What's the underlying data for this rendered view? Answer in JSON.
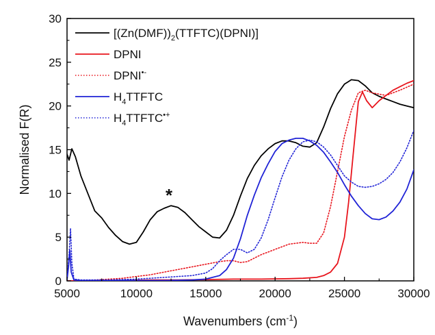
{
  "chart_data": {
    "type": "line",
    "xlabel": "Wavenumbers (cm",
    "xlabel_sup": "-1",
    "xlabel_end": ")",
    "ylabel": "Normalised F(R)",
    "xlim": [
      5000,
      30000
    ],
    "ylim": [
      0,
      30
    ],
    "xticks": [
      5000,
      10000,
      15000,
      20000,
      25000,
      30000
    ],
    "yticks": [
      0,
      5,
      10,
      15,
      20,
      25,
      30
    ],
    "grid": false,
    "legend_position": "top-left",
    "annotations": [
      {
        "text": "*",
        "x": 12350,
        "y": 9.8
      }
    ],
    "series": [
      {
        "name": "[(Zn(DMF))2(TTFTC)(DPNI)]",
        "legend_parts": [
          {
            "t": "[(Zn(DMF))",
            "s": "normal"
          },
          {
            "t": "2",
            "s": "sub"
          },
          {
            "t": "(TTFTC)(DPNI)]",
            "s": "normal"
          }
        ],
        "color": "#000000",
        "dash": "solid",
        "x": [
          5000,
          5150,
          5350,
          5600,
          6000,
          6500,
          7000,
          7500,
          8000,
          8500,
          9000,
          9500,
          10000,
          10500,
          11000,
          11500,
          12000,
          12500,
          13000,
          13500,
          14000,
          14500,
          15000,
          15500,
          16000,
          16500,
          17000,
          17500,
          18000,
          18500,
          19000,
          19500,
          20000,
          20500,
          21000,
          21500,
          22000,
          22500,
          23000,
          23500,
          24000,
          24500,
          25000,
          25500,
          26000,
          26500,
          27000,
          27500,
          28000,
          28500,
          29000,
          29500,
          30000
        ],
        "y": [
          14.5,
          13.8,
          15.1,
          14.2,
          12.0,
          10.0,
          8.0,
          7.2,
          6.1,
          5.2,
          4.5,
          4.2,
          4.4,
          5.6,
          7.0,
          7.9,
          8.3,
          8.6,
          8.4,
          7.8,
          7.0,
          6.2,
          5.6,
          5.0,
          4.9,
          5.8,
          7.5,
          9.7,
          11.7,
          13.2,
          14.3,
          15.1,
          15.7,
          16.0,
          16.0,
          15.8,
          15.4,
          15.3,
          15.8,
          17.6,
          19.7,
          21.4,
          22.5,
          23.0,
          22.9,
          22.3,
          21.5,
          21.1,
          20.8,
          20.5,
          20.2,
          20.0,
          19.8
        ]
      },
      {
        "name": "DPNI",
        "legend_parts": [
          {
            "t": "DPNI",
            "s": "normal"
          }
        ],
        "color": "#e8141c",
        "dash": "solid",
        "x": [
          5000,
          7000,
          9000,
          11000,
          13000,
          15000,
          17000,
          19000,
          21000,
          22000,
          23000,
          23500,
          24000,
          24500,
          25000,
          25300,
          25600,
          26000,
          26300,
          26600,
          27000,
          27500,
          28000,
          28500,
          29000,
          29500,
          30000
        ],
        "y": [
          0.0,
          0.05,
          0.05,
          0.1,
          0.1,
          0.15,
          0.2,
          0.2,
          0.25,
          0.3,
          0.4,
          0.6,
          1.0,
          2.0,
          5.0,
          9.0,
          14.0,
          20.5,
          21.6,
          20.6,
          19.8,
          20.6,
          21.2,
          21.8,
          22.2,
          22.6,
          22.9
        ]
      },
      {
        "name": "DPNI•-",
        "legend_parts": [
          {
            "t": "DPNI",
            "s": "normal"
          },
          {
            "t": "•-",
            "s": "sup"
          }
        ],
        "color": "#e8141c",
        "dash": "dotted",
        "x": [
          5000,
          7000,
          9000,
          10000,
          11000,
          12000,
          13000,
          14000,
          15000,
          16000,
          16500,
          17000,
          17500,
          18000,
          18500,
          19000,
          19500,
          20000,
          21000,
          22000,
          22500,
          23000,
          23500,
          24000,
          24500,
          25000,
          25500,
          26000,
          26500,
          27000,
          28000,
          29000,
          30000
        ],
        "y": [
          0.0,
          0.1,
          0.3,
          0.5,
          0.7,
          1.0,
          1.3,
          1.6,
          1.9,
          2.2,
          2.3,
          2.3,
          2.1,
          2.2,
          2.6,
          3.0,
          3.3,
          3.6,
          4.2,
          4.4,
          4.3,
          4.3,
          5.5,
          8.5,
          12.5,
          16.5,
          19.5,
          21.5,
          21.8,
          21.5,
          21.2,
          21.8,
          22.5
        ]
      },
      {
        "name": "H4TTFTC",
        "legend_parts": [
          {
            "t": "H",
            "s": "normal"
          },
          {
            "t": "4",
            "s": "sub"
          },
          {
            "t": "TTFTC",
            "s": "normal"
          }
        ],
        "color": "#1f22d6",
        "dash": "solid",
        "x": [
          5000,
          5100,
          5200,
          5300,
          5500,
          6000,
          8000,
          10000,
          12000,
          14000,
          15000,
          16000,
          16500,
          17000,
          17500,
          18000,
          18500,
          19000,
          19500,
          20000,
          20500,
          21000,
          21500,
          22000,
          22500,
          23000,
          23500,
          24000,
          24500,
          25000,
          25500,
          26000,
          26500,
          27000,
          27500,
          28000,
          28500,
          29000,
          29500,
          30000
        ],
        "y": [
          0.1,
          1.5,
          3.5,
          1.0,
          0.1,
          0.05,
          0.05,
          0.05,
          0.05,
          0.1,
          0.2,
          0.6,
          1.3,
          2.6,
          4.8,
          7.5,
          9.8,
          11.8,
          13.4,
          14.8,
          15.7,
          16.1,
          16.3,
          16.3,
          16.0,
          15.5,
          14.7,
          13.6,
          12.4,
          11.0,
          9.7,
          8.6,
          7.7,
          7.1,
          7.0,
          7.3,
          8.0,
          9.0,
          10.5,
          12.7
        ]
      },
      {
        "name": "H4TTFTC•+",
        "legend_parts": [
          {
            "t": "H",
            "s": "normal"
          },
          {
            "t": "4",
            "s": "sub"
          },
          {
            "t": "TTFTC",
            "s": "normal"
          },
          {
            "t": "•+",
            "s": "sup"
          }
        ],
        "color": "#1f22d6",
        "dash": "dotted",
        "x": [
          5000,
          5150,
          5250,
          5350,
          5500,
          6000,
          8000,
          10000,
          12000,
          14000,
          15000,
          15500,
          16000,
          16500,
          17000,
          17500,
          18000,
          18500,
          19000,
          19500,
          20000,
          20500,
          21000,
          21500,
          22000,
          22500,
          23000,
          23500,
          24000,
          24500,
          25000,
          25500,
          26000,
          26500,
          27000,
          27500,
          28000,
          28500,
          29000,
          29500,
          30000
        ],
        "y": [
          0.1,
          3.0,
          6.0,
          2.0,
          0.2,
          0.1,
          0.1,
          0.2,
          0.4,
          0.6,
          0.9,
          1.4,
          2.3,
          3.0,
          3.6,
          3.6,
          3.2,
          3.6,
          4.9,
          7.0,
          9.5,
          11.9,
          13.8,
          15.1,
          15.9,
          16.1,
          15.9,
          15.3,
          14.4,
          13.2,
          12.0,
          11.3,
          10.8,
          10.7,
          10.8,
          11.1,
          11.6,
          12.4,
          13.6,
          15.2,
          17.2
        ]
      }
    ]
  }
}
